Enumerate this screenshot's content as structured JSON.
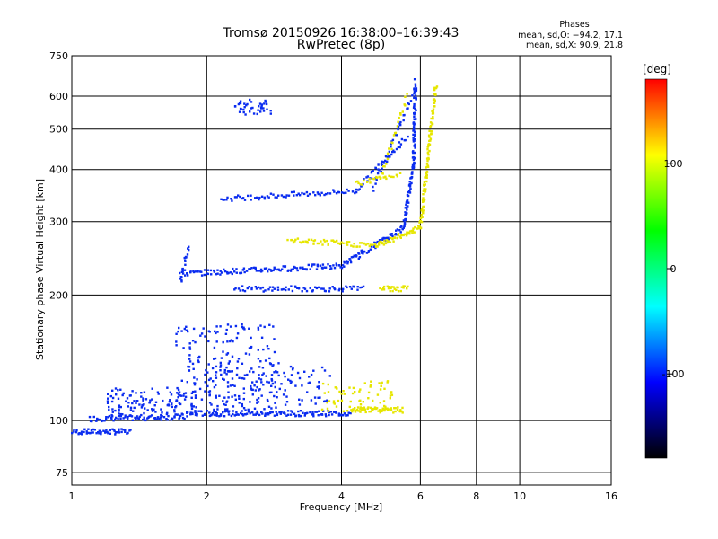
{
  "chart_data": {
    "type": "scatter",
    "title": "Tromsø 20150926 16:38:00–16:39:43",
    "subtitle": "RwPretec (8p)",
    "xlabel": "Frequency [MHz]",
    "ylabel": "Stationary phase Virtual Height [km]",
    "x_scale": "log",
    "y_scale": "log",
    "xlim": [
      1,
      16
    ],
    "ylim": [
      70,
      750
    ],
    "x_ticks": [
      1,
      2,
      4,
      6,
      8,
      10,
      16
    ],
    "y_ticks": [
      75,
      100,
      200,
      300,
      400,
      500,
      600,
      750
    ],
    "grid": true,
    "stats": {
      "heading": "Phases",
      "line_o": "mean, sd,O: −94.2, 17.1",
      "line_x": "mean, sd,X:  90.9, 21.8"
    },
    "colorbar": {
      "label": "[deg]",
      "range": [
        -180,
        180
      ],
      "ticks": [
        100,
        0,
        -100
      ],
      "colors": [
        "#ff0000",
        "#ffff00",
        "#00ff00",
        "#00ffff",
        "#0000ff",
        "#000000"
      ]
    },
    "series": [
      {
        "mode": "O",
        "color": "#0a2cf0",
        "traces": [
          {
            "x": [
              1.0,
              1.35
            ],
            "y": [
              94,
              94
            ],
            "n": 55
          },
          {
            "x": [
              1.1,
              1.8
            ],
            "y": [
              101,
              102
            ],
            "n": 80
          },
          {
            "x": [
              1.8,
              4.2
            ],
            "y": [
              104,
              104
            ],
            "n": 140
          },
          {
            "x": [
              1.75,
              4.0
            ],
            "y": [
              225,
              235
            ],
            "n": 120
          },
          {
            "x": [
              4.0,
              5.5
            ],
            "y": [
              235,
              290
            ],
            "n": 70
          },
          {
            "x": [
              5.5,
              5.8
            ],
            "y": [
              290,
              420
            ],
            "n": 60
          },
          {
            "x": [
              5.8,
              5.85
            ],
            "y": [
              420,
              650
            ],
            "n": 60
          },
          {
            "x": [
              2.15,
              4.3
            ],
            "y": [
              340,
              355
            ],
            "n": 70
          },
          {
            "x": [
              4.3,
              5.6
            ],
            "y": [
              355,
              480
            ],
            "n": 40
          },
          {
            "x": [
              2.3,
              4.5
            ],
            "y": [
              207,
              207
            ],
            "n": 70
          },
          {
            "x": [
              1.75,
              1.82
            ],
            "y": [
              215,
              260
            ],
            "n": 20
          },
          {
            "x": [
              4.7,
              5.75
            ],
            "y": [
              360,
              600
            ],
            "n": 35
          }
        ],
        "clusters": [
          {
            "x": [
              1.2,
              1.9
            ],
            "y": [
              103,
              120
            ],
            "n": 120
          },
          {
            "x": [
              1.7,
              2.9
            ],
            "y": [
              108,
              170
            ],
            "n": 180
          },
          {
            "x": [
              2.0,
              3.8
            ],
            "y": [
              105,
              135
            ],
            "n": 130
          },
          {
            "x": [
              2.3,
              2.8
            ],
            "y": [
              540,
              590
            ],
            "n": 40
          }
        ]
      },
      {
        "mode": "X",
        "color": "#e6e600",
        "traces": [
          {
            "x": [
              3.05,
              4.8
            ],
            "y": [
              270,
              263
            ],
            "n": 60
          },
          {
            "x": [
              4.8,
              6.0
            ],
            "y": [
              263,
              290
            ],
            "n": 50
          },
          {
            "x": [
              6.0,
              6.5
            ],
            "y": [
              290,
              640
            ],
            "n": 110
          },
          {
            "x": [
              4.2,
              5.5
            ],
            "y": [
              106,
              106
            ],
            "n": 60
          },
          {
            "x": [
              4.9,
              5.6
            ],
            "y": [
              207,
              207
            ],
            "n": 25
          },
          {
            "x": [
              4.9,
              5.6
            ],
            "y": [
              380,
              600
            ],
            "n": 25
          },
          {
            "x": [
              4.3,
              5.4
            ],
            "y": [
              370,
              390
            ],
            "n": 25
          }
        ],
        "clusters": [
          {
            "x": [
              3.6,
              5.2
            ],
            "y": [
              105,
              125
            ],
            "n": 70
          }
        ]
      }
    ]
  }
}
